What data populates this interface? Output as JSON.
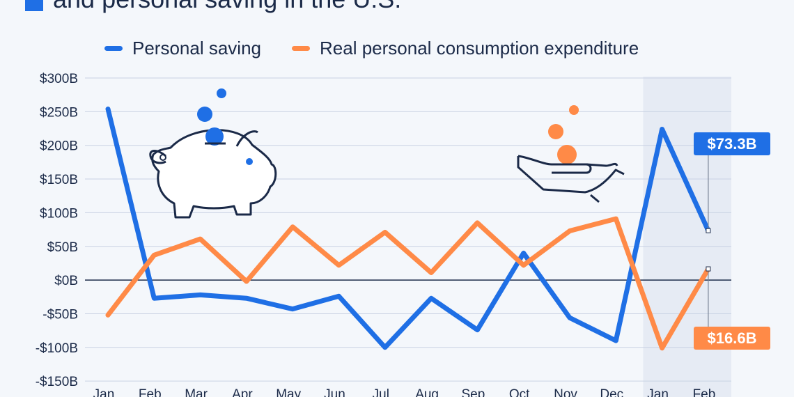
{
  "title": "and personal saving in the U.S.",
  "colors": {
    "saving": "#1f6fe5",
    "consumption": "#ff8a47",
    "text": "#1b2a48",
    "grid": "#c9d2e3",
    "highlight": "#e6ebf4"
  },
  "icons": {
    "saving_icon": "piggy-bank-icon",
    "consumption_icon": "hand-with-coins-icon"
  },
  "callouts": {
    "saving": "$73.3B",
    "consumption": "$16.6B"
  },
  "chart_data": {
    "type": "line",
    "title": "",
    "xlabel": "",
    "ylabel": "",
    "categories": [
      "Jan",
      "Feb",
      "Mar",
      "Apr",
      "May",
      "Jun",
      "Jul",
      "Aug",
      "Sep",
      "Oct",
      "Nov",
      "Dec",
      "Jan",
      "Feb"
    ],
    "ylim": [
      -150,
      300
    ],
    "yticks": [
      300,
      250,
      200,
      150,
      100,
      50,
      0,
      -50,
      -100,
      -150
    ],
    "ytick_labels": [
      "$300B",
      "$250B",
      "$200B",
      "$150B",
      "$100B",
      "$50B",
      "$0B",
      "-$50B",
      "-$100B",
      "-$150B"
    ],
    "grid": true,
    "legend_position": "top",
    "highlighted_categories": [
      12,
      13
    ],
    "series": [
      {
        "name": "Personal saving",
        "color": "#1f6fe5",
        "values": [
          254,
          -27,
          -22,
          -27,
          -43,
          -24,
          -100,
          -27,
          -74,
          40,
          -56,
          -90,
          224,
          73.3
        ]
      },
      {
        "name": "Real personal consumption expenditure",
        "color": "#ff8a47",
        "values": [
          -52,
          37,
          61,
          -2,
          79,
          22,
          71,
          11,
          85,
          22,
          73,
          91,
          -101,
          16.6
        ]
      }
    ]
  }
}
